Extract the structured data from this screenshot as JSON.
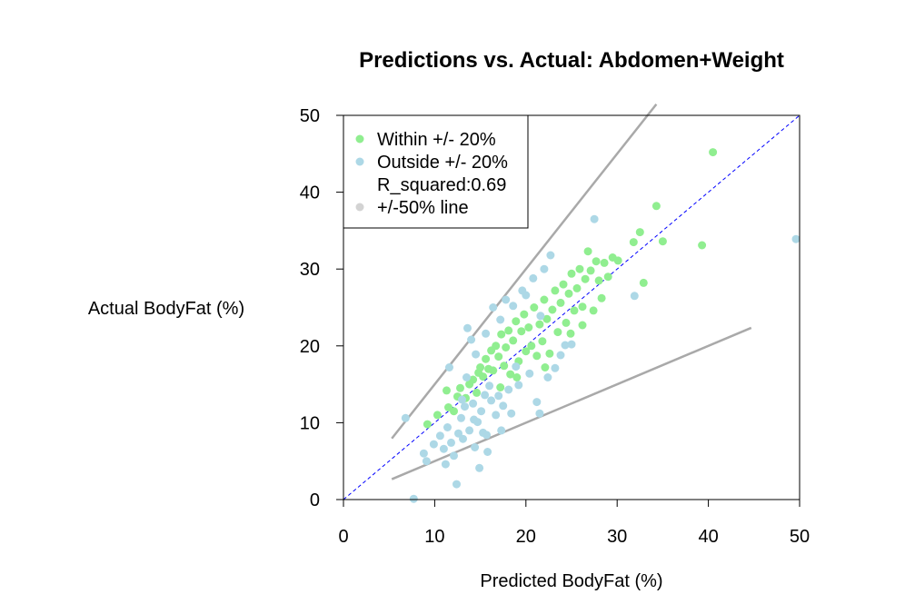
{
  "chart_data": {
    "type": "scatter",
    "title": "Predictions vs. Actual: Abdomen+Weight",
    "xlabel": "Predicted BodyFat (%)",
    "ylabel": "Actual BodyFat (%)",
    "xlim": [
      0,
      50
    ],
    "ylim": [
      0,
      50
    ],
    "xticks": [
      "0",
      "10",
      "20",
      "30",
      "40",
      "50"
    ],
    "yticks": [
      "0",
      "10",
      "20",
      "30",
      "40",
      "50"
    ],
    "grid": false,
    "legend_position": "top-left",
    "legend": [
      {
        "label": "Within +/- 20%",
        "color": "#90ee90"
      },
      {
        "label": "Outside +/- 20%",
        "color": "#add8e6"
      },
      {
        "label": "R_squared:0.69",
        "color": ""
      },
      {
        "label": "+/-50% line",
        "color": "#d3d3d3"
      }
    ],
    "reference_lines": {
      "identity": {
        "slope": 1,
        "color": "#0000ff",
        "style": "dashed"
      },
      "plus_50": {
        "slope": 1.5,
        "x_from": 5.3,
        "x_to": 34.3,
        "color": "#a9a9a9"
      },
      "minus_50": {
        "slope": 0.5,
        "x_from": 5.3,
        "x_to": 44.7,
        "color": "#a9a9a9"
      }
    },
    "series": [
      {
        "name": "Within +/- 20%",
        "color": "#90ee90",
        "points": [
          [
            9.2,
            9.8
          ],
          [
            10.3,
            11.0
          ],
          [
            11.3,
            14.2
          ],
          [
            11.5,
            12.0
          ],
          [
            12.5,
            13.4
          ],
          [
            12.8,
            14.5
          ],
          [
            13.4,
            13.2
          ],
          [
            13.8,
            15.0
          ],
          [
            14.2,
            15.6
          ],
          [
            14.6,
            13.9
          ],
          [
            14.8,
            16.5
          ],
          [
            15.0,
            17.2
          ],
          [
            15.3,
            16.0
          ],
          [
            15.6,
            18.3
          ],
          [
            15.9,
            17.0
          ],
          [
            16.2,
            19.4
          ],
          [
            16.4,
            16.8
          ],
          [
            16.7,
            20.0
          ],
          [
            17.0,
            18.6
          ],
          [
            17.3,
            21.5
          ],
          [
            17.6,
            17.4
          ],
          [
            17.8,
            19.8
          ],
          [
            18.1,
            22.0
          ],
          [
            18.3,
            16.3
          ],
          [
            18.6,
            20.7
          ],
          [
            18.9,
            23.2
          ],
          [
            19.2,
            18.0
          ],
          [
            19.5,
            21.9
          ],
          [
            19.8,
            24.1
          ],
          [
            20.0,
            19.3
          ],
          [
            20.3,
            22.4
          ],
          [
            20.6,
            20.0
          ],
          [
            20.9,
            25.0
          ],
          [
            21.2,
            18.7
          ],
          [
            21.5,
            22.8
          ],
          [
            21.8,
            20.6
          ],
          [
            22.0,
            26.0
          ],
          [
            22.3,
            23.5
          ],
          [
            22.6,
            19.0
          ],
          [
            22.9,
            24.7
          ],
          [
            23.2,
            27.2
          ],
          [
            23.5,
            21.8
          ],
          [
            23.8,
            25.6
          ],
          [
            24.1,
            28.0
          ],
          [
            24.4,
            23.0
          ],
          [
            24.7,
            26.8
          ],
          [
            25.0,
            29.4
          ],
          [
            25.3,
            24.6
          ],
          [
            25.6,
            27.5
          ],
          [
            25.9,
            30.0
          ],
          [
            26.2,
            25.1
          ],
          [
            26.5,
            28.7
          ],
          [
            26.8,
            32.3
          ],
          [
            27.1,
            29.8
          ],
          [
            27.4,
            24.6
          ],
          [
            27.7,
            31.0
          ],
          [
            28.0,
            28.5
          ],
          [
            28.3,
            26.2
          ],
          [
            28.6,
            30.8
          ],
          [
            29.0,
            29.0
          ],
          [
            29.5,
            31.5
          ],
          [
            30.1,
            31.1
          ],
          [
            31.8,
            33.5
          ],
          [
            32.5,
            34.8
          ],
          [
            32.9,
            28.2
          ],
          [
            34.3,
            38.2
          ],
          [
            35.0,
            33.6
          ],
          [
            39.3,
            33.1
          ],
          [
            40.5,
            45.2
          ],
          [
            26.2,
            22.7
          ],
          [
            19.0,
            15.9
          ],
          [
            17.2,
            14.6
          ],
          [
            12.1,
            11.5
          ],
          [
            22.1,
            17.2
          ],
          [
            24.9,
            21.6
          ]
        ]
      },
      {
        "name": "Outside +/- 20%",
        "color": "#add8e6",
        "points": [
          [
            6.8,
            10.6
          ],
          [
            7.7,
            0.1
          ],
          [
            8.8,
            6.0
          ],
          [
            9.1,
            5.0
          ],
          [
            9.9,
            7.2
          ],
          [
            10.6,
            8.3
          ],
          [
            11.0,
            6.6
          ],
          [
            11.2,
            4.6
          ],
          [
            11.4,
            9.4
          ],
          [
            11.6,
            17.2
          ],
          [
            11.8,
            7.4
          ],
          [
            12.1,
            5.7
          ],
          [
            12.4,
            2.0
          ],
          [
            12.6,
            8.6
          ],
          [
            12.9,
            10.6
          ],
          [
            13.1,
            7.9
          ],
          [
            13.3,
            12.1
          ],
          [
            13.5,
            15.9
          ],
          [
            13.6,
            22.3
          ],
          [
            13.8,
            9.0
          ],
          [
            14.0,
            20.8
          ],
          [
            14.2,
            12.5
          ],
          [
            14.4,
            6.8
          ],
          [
            14.5,
            18.9
          ],
          [
            14.7,
            10.1
          ],
          [
            14.9,
            4.1
          ],
          [
            15.1,
            11.5
          ],
          [
            15.3,
            8.7
          ],
          [
            15.5,
            13.6
          ],
          [
            15.6,
            21.6
          ],
          [
            15.8,
            6.2
          ],
          [
            16.0,
            14.8
          ],
          [
            16.2,
            12.9
          ],
          [
            16.4,
            25.0
          ],
          [
            16.7,
            11.0
          ],
          [
            17.0,
            13.5
          ],
          [
            17.2,
            23.4
          ],
          [
            17.5,
            12.2
          ],
          [
            17.8,
            26.0
          ],
          [
            18.1,
            14.3
          ],
          [
            18.4,
            11.2
          ],
          [
            18.6,
            25.2
          ],
          [
            18.9,
            17.3
          ],
          [
            19.2,
            14.9
          ],
          [
            19.6,
            27.2
          ],
          [
            20.0,
            26.6
          ],
          [
            20.4,
            16.4
          ],
          [
            20.8,
            28.8
          ],
          [
            21.2,
            12.7
          ],
          [
            21.5,
            11.2
          ],
          [
            22.0,
            30.0
          ],
          [
            22.4,
            15.9
          ],
          [
            22.7,
            31.8
          ],
          [
            23.2,
            17.1
          ],
          [
            23.8,
            18.8
          ],
          [
            24.3,
            20.1
          ],
          [
            25.0,
            20.2
          ],
          [
            27.5,
            36.5
          ],
          [
            31.9,
            26.5
          ],
          [
            49.6,
            33.9
          ],
          [
            17.3,
            9.0
          ],
          [
            15.7,
            8.4
          ],
          [
            13.0,
            13.0
          ],
          [
            14.3,
            10.4
          ],
          [
            21.6,
            23.9
          ]
        ]
      }
    ]
  }
}
